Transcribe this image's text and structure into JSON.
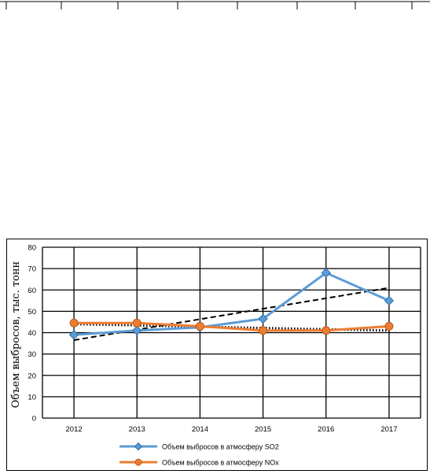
{
  "chart_data": {
    "type": "line",
    "ylabel": "Объем выбросов, тыс. тонн",
    "categories": [
      "2012",
      "2013",
      "2014",
      "2015",
      "2016",
      "2017"
    ],
    "ylim": [
      0,
      80
    ],
    "yticks": [
      0,
      10,
      20,
      30,
      40,
      50,
      60,
      70,
      80
    ],
    "grid": true,
    "legend_position": "bottom",
    "series": [
      {
        "name": "Объем выбросов в атмосферу SO2",
        "values": [
          39,
          41,
          42.5,
          46.5,
          68,
          55
        ],
        "color": "#5B9BD5",
        "marker": "diamond",
        "trendline": {
          "style": "dashed",
          "values_at_ends": [
            36.5,
            61
          ]
        }
      },
      {
        "name": "Объем выбросов в атмосферу NOx",
        "values": [
          44.5,
          44.5,
          43,
          41,
          41,
          43
        ],
        "color": "#ED7D31",
        "marker": "circle",
        "trendline": {
          "style": "dotted",
          "values_at_ends": [
            44,
            41
          ]
        }
      }
    ]
  }
}
